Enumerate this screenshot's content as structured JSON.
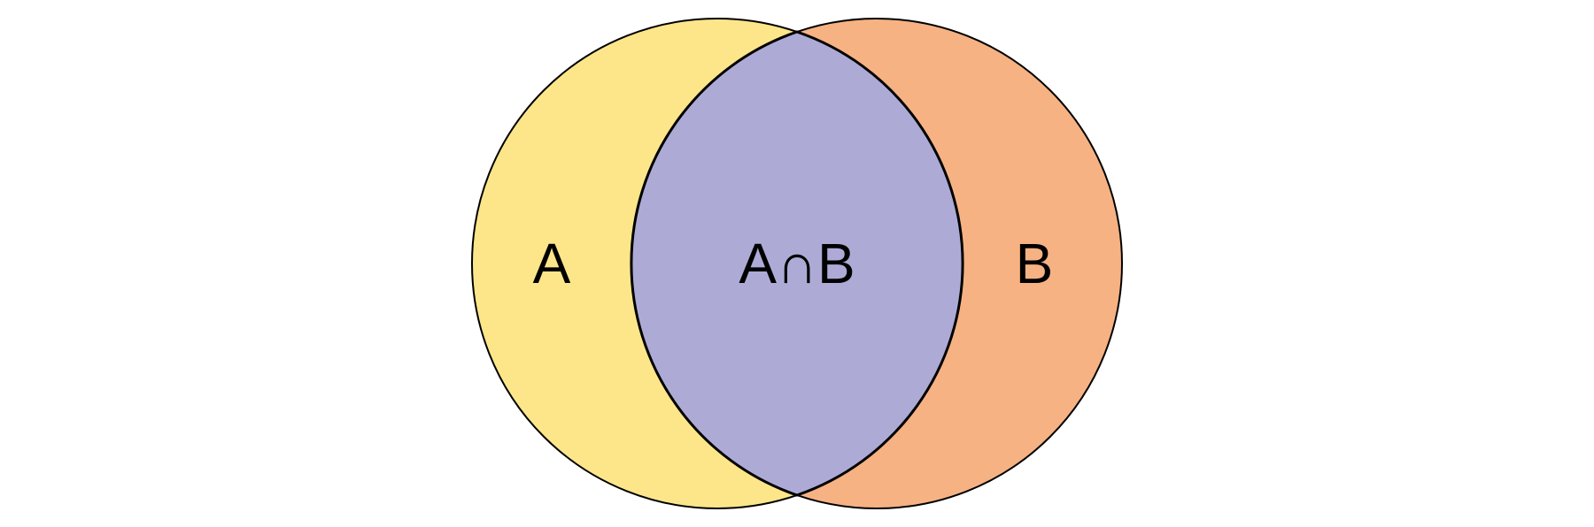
{
  "diagram": {
    "type": "venn",
    "sets": [
      {
        "id": "a",
        "label": "A",
        "color": "#FDE68A"
      },
      {
        "id": "b",
        "label": "B",
        "color": "#F6B283"
      }
    ],
    "intersection": {
      "label": "A∩B",
      "color": "#ADABD6"
    },
    "outline_color": "#000000"
  }
}
